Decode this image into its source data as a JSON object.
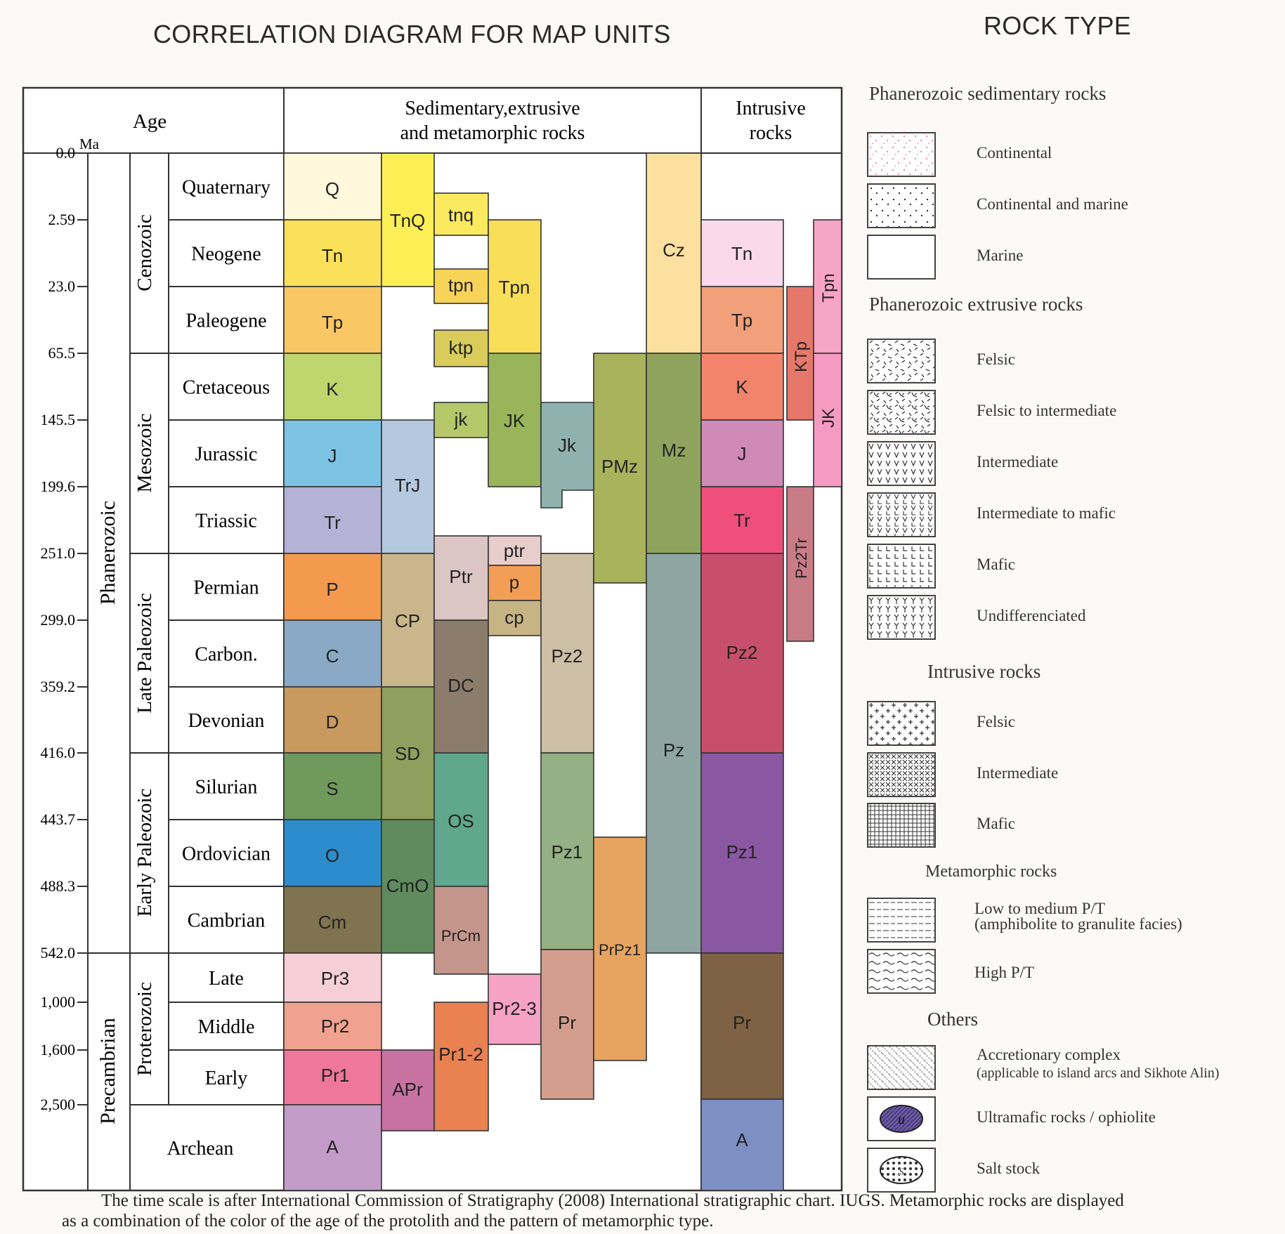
{
  "titles": {
    "diagram": "CORRELATION DIAGRAM FOR MAP UNITS",
    "rock_type": "ROCK TYPE"
  },
  "headers": {
    "age": "Age",
    "ma": "Ma",
    "sed_line1": "Sedimentary,extrusive",
    "sed_line2": "and metamorphic rocks",
    "intr_line1": "Intrusive",
    "intr_line2": "rocks"
  },
  "time_ticks": [
    "0.0",
    "2.59",
    "23.0",
    "65.5",
    "145.5",
    "199.6",
    "251.0",
    "299.0",
    "359.2",
    "416.0",
    "443.7",
    "488.3",
    "542.0",
    "1,000",
    "1,600",
    "2,500"
  ],
  "eons": [
    "Phanerozoic",
    "Precambrian"
  ],
  "eras": [
    "Cenozoic",
    "Mesozoic",
    "Late Paleozoic",
    "Early Paleozoic",
    "Proterozoic"
  ],
  "periods": [
    "Quaternary",
    "Neogene",
    "Paleogene",
    "Cretaceous",
    "Jurassic",
    "Triassic",
    "Permian",
    "Carbon.",
    "Devonian",
    "Silurian",
    "Ordovician",
    "Cambrian",
    "Late",
    "Middle",
    "Early",
    "Archean"
  ],
  "units": {
    "Q": "Q",
    "Tn": "Tn",
    "Tp": "Tp",
    "K": "K",
    "J": "J",
    "Tr": "Tr",
    "P": "P",
    "C": "C",
    "D": "D",
    "S": "S",
    "O": "O",
    "Cm": "Cm",
    "Pr3": "Pr3",
    "Pr2": "Pr2",
    "Pr1": "Pr1",
    "A": "A",
    "TnQ": "TnQ",
    "TrJ": "TrJ",
    "CP": "CP",
    "SD": "SD",
    "CmO": "CmO",
    "APr": "APr",
    "tnq": "tnq",
    "tpn": "tpn",
    "ktp": "ktp",
    "jk": "jk",
    "Ptr": "Ptr",
    "DC": "DC",
    "OS": "OS",
    "PrCm": "PrCm",
    "Pr1-2": "Pr1-2",
    "Tpn": "Tpn",
    "JK": "JK",
    "ptr": "ptr",
    "p": "p",
    "cp": "cp",
    "Pr2-3": "Pr2-3",
    "Jk": "Jk",
    "Pz2": "Pz2",
    "Pz1": "Pz1",
    "Pr": "Pr",
    "PMz": "PMz",
    "PrPz1": "PrPz1",
    "Cz": "Cz",
    "Mz": "Mz",
    "Pz": "Pz",
    "KTp": "KTp",
    "Pz2Tr": "Pz2Tr"
  },
  "legend": {
    "phanerozoic_sedimentary": {
      "heading": "Phanerozoic sedimentary rocks",
      "items": [
        "Continental",
        "Continental  and marine",
        "Marine"
      ]
    },
    "phanerozoic_extrusive": {
      "heading": "Phanerozoic extrusive rocks",
      "items": [
        "Felsic",
        "Felsic to intermediate",
        "Intermediate",
        "Intermediate to mafic",
        "Mafic",
        "Undifferenciated"
      ]
    },
    "intrusive": {
      "heading": "Intrusive rocks",
      "items": [
        "Felsic",
        "Intermediate",
        "Mafic"
      ]
    },
    "metamorphic": {
      "heading": "Metamorphic rocks",
      "low_line1": "Low to medium P/T",
      "low_line2": "(amphibolite to granulite facies)",
      "high": "High P/T"
    },
    "others": {
      "heading": "Others",
      "accretionary_line1": "Accretionary complex",
      "accretionary_line2": "(applicable to island arcs and Sikhote Alin)",
      "ultramafic": "Ultramafic rocks / ophiolite",
      "ultramafic_symbol": "u",
      "salt": "Salt stock",
      "salt_symbol": "s"
    }
  },
  "footnote": {
    "line1": "The time scale is after International Commission of Stratigraphy (2008) International stratigraphic chart. IUGS.  Metamorphic rocks are displayed",
    "line2": "as a combination of the color of the age of the protolith and the pattern of metamorphic type."
  }
}
